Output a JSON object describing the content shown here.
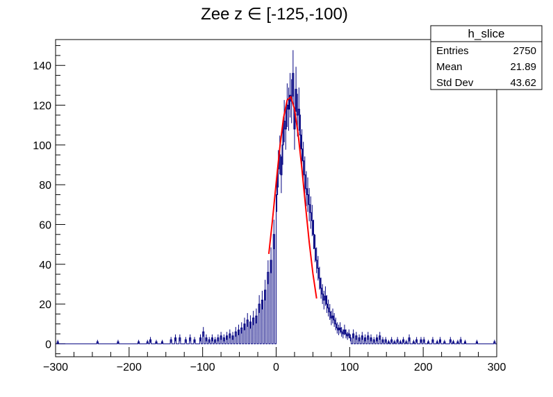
{
  "chart_data": {
    "type": "histogram",
    "title": "Zee z ∈ [-125,-100)",
    "xlabel": "",
    "ylabel": "",
    "xlim": [
      -300,
      300
    ],
    "ylim": [
      -6.5,
      153
    ],
    "x_ticks": [
      -300,
      -200,
      -100,
      0,
      100,
      200,
      300
    ],
    "x_tick_labels": [
      "−300",
      "−200",
      "−100",
      "0",
      "100",
      "200",
      "300"
    ],
    "y_ticks": [
      0,
      20,
      40,
      60,
      80,
      100,
      120,
      140
    ],
    "y_tick_labels": [
      "0",
      "20",
      "40",
      "60",
      "80",
      "100",
      "120",
      "140"
    ],
    "grid": false,
    "bin_width": 2,
    "series": [
      {
        "name": "h_slice",
        "color": "#000080",
        "points": [
          [
            -298,
            1
          ],
          [
            -244,
            1
          ],
          [
            -216,
            1
          ],
          [
            -188,
            1
          ],
          [
            -176,
            1
          ],
          [
            -172,
            2
          ],
          [
            -164,
            1
          ],
          [
            -156,
            1
          ],
          [
            -144,
            2
          ],
          [
            -138,
            3
          ],
          [
            -132,
            3
          ],
          [
            -124,
            2
          ],
          [
            -118,
            3
          ],
          [
            -112,
            2
          ],
          [
            -104,
            3
          ],
          [
            -100,
            6
          ],
          [
            -96,
            3
          ],
          [
            -92,
            2
          ],
          [
            -88,
            3
          ],
          [
            -84,
            2
          ],
          [
            -80,
            3
          ],
          [
            -76,
            4
          ],
          [
            -72,
            3
          ],
          [
            -68,
            4
          ],
          [
            -64,
            5
          ],
          [
            -60,
            4
          ],
          [
            -56,
            6
          ],
          [
            -52,
            7
          ],
          [
            -48,
            8
          ],
          [
            -44,
            10
          ],
          [
            -40,
            12
          ],
          [
            -36,
            11
          ],
          [
            -32,
            13
          ],
          [
            -28,
            14
          ],
          [
            -24,
            20
          ],
          [
            -20,
            22
          ],
          [
            -16,
            27
          ],
          [
            -12,
            36
          ],
          [
            -8,
            42
          ],
          [
            -4,
            55
          ],
          [
            0,
            75
          ],
          [
            2,
            88
          ],
          [
            4,
            95
          ],
          [
            6,
            85
          ],
          [
            8,
            100
          ],
          [
            10,
            112
          ],
          [
            12,
            108
          ],
          [
            14,
            120
          ],
          [
            16,
            118
          ],
          [
            18,
            125
          ],
          [
            20,
            122
          ],
          [
            22,
            136
          ],
          [
            24,
            108
          ],
          [
            26,
            128
          ],
          [
            28,
            115
          ],
          [
            30,
            118
          ],
          [
            32,
            105
          ],
          [
            34,
            98
          ],
          [
            36,
            92
          ],
          [
            38,
            85
          ],
          [
            40,
            78
          ],
          [
            42,
            75
          ],
          [
            44,
            70
          ],
          [
            46,
            66
          ],
          [
            48,
            62
          ],
          [
            50,
            55
          ],
          [
            52,
            48
          ],
          [
            54,
            42
          ],
          [
            56,
            38
          ],
          [
            58,
            33
          ],
          [
            60,
            28
          ],
          [
            62,
            25
          ],
          [
            64,
            22
          ],
          [
            66,
            24
          ],
          [
            68,
            20
          ],
          [
            70,
            18
          ],
          [
            72,
            16
          ],
          [
            74,
            13
          ],
          [
            76,
            14
          ],
          [
            78,
            12
          ],
          [
            80,
            10
          ],
          [
            82,
            8
          ],
          [
            84,
            7
          ],
          [
            86,
            8
          ],
          [
            88,
            6
          ],
          [
            90,
            5
          ],
          [
            92,
            7
          ],
          [
            94,
            5
          ],
          [
            96,
            4
          ],
          [
            98,
            5
          ],
          [
            100,
            3
          ],
          [
            104,
            5
          ],
          [
            108,
            4
          ],
          [
            112,
            3
          ],
          [
            116,
            4
          ],
          [
            120,
            3
          ],
          [
            124,
            4
          ],
          [
            128,
            3
          ],
          [
            132,
            2
          ],
          [
            136,
            3
          ],
          [
            140,
            4
          ],
          [
            144,
            2
          ],
          [
            148,
            2
          ],
          [
            152,
            1
          ],
          [
            156,
            2
          ],
          [
            160,
            1
          ],
          [
            164,
            2
          ],
          [
            168,
            1
          ],
          [
            172,
            2
          ],
          [
            176,
            1
          ],
          [
            180,
            3
          ],
          [
            186,
            1
          ],
          [
            190,
            2
          ],
          [
            196,
            2
          ],
          [
            200,
            2
          ],
          [
            206,
            1
          ],
          [
            212,
            2
          ],
          [
            218,
            1
          ],
          [
            222,
            2
          ],
          [
            228,
            1
          ],
          [
            236,
            2
          ],
          [
            240,
            1
          ],
          [
            246,
            1
          ],
          [
            250,
            2
          ],
          [
            256,
            1
          ],
          [
            272,
            1
          ],
          [
            296,
            1
          ]
        ]
      },
      {
        "name": "fit",
        "color": "#ff0000",
        "type": "line",
        "x": [
          -10,
          -5,
          0,
          5,
          10,
          15,
          20,
          25,
          30,
          35,
          40,
          45,
          50,
          55
        ],
        "y": [
          45.2,
          62.2,
          80.9,
          98.8,
          113.6,
          122.6,
          124.2,
          118.0,
          105.2,
          88.1,
          69.2,
          51.0,
          35.3,
          22.8
        ]
      }
    ],
    "stats_box": {
      "title": "h_slice",
      "rows": [
        {
          "label": "Entries",
          "value": "2750"
        },
        {
          "label": "Mean",
          "value": "21.89"
        },
        {
          "label": "Std Dev",
          "value": "43.62"
        }
      ]
    }
  }
}
